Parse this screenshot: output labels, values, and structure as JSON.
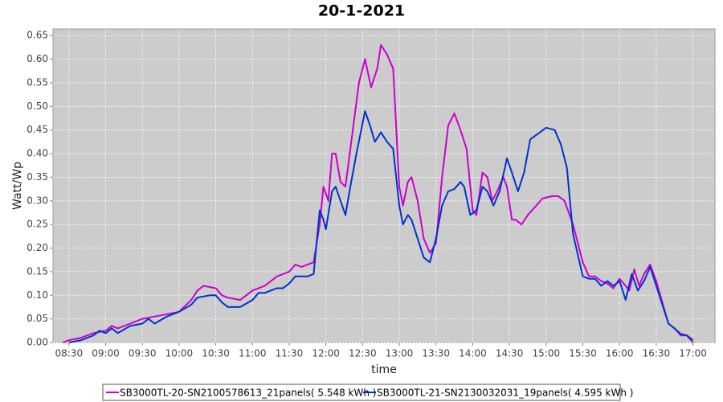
{
  "chart_data": {
    "type": "line",
    "title": "20-1-2021",
    "x_label": "time",
    "y_label": "Watt/Wp",
    "xlim": [
      "08:17",
      "17:18"
    ],
    "ylim": [
      0,
      0.664
    ],
    "xticks": [
      "08:30",
      "09:00",
      "09:30",
      "10:00",
      "10:30",
      "11:00",
      "11:30",
      "12:00",
      "12:30",
      "13:00",
      "13:30",
      "14:00",
      "14:30",
      "15:00",
      "15:30",
      "16:00",
      "16:30",
      "17:00"
    ],
    "yticks": [
      {
        "value": 0,
        "label": "0.00"
      },
      {
        "value": 0.05,
        "label": "0.05"
      },
      {
        "value": 0.1,
        "label": "0.10"
      },
      {
        "value": 0.15,
        "label": "0.15"
      },
      {
        "value": 0.2,
        "label": "0.20"
      },
      {
        "value": 0.25,
        "label": "0.25"
      },
      {
        "value": 0.3,
        "label": "0.30"
      },
      {
        "value": 0.35,
        "label": "0.35"
      },
      {
        "value": 0.4,
        "label": "0.40"
      },
      {
        "value": 0.45,
        "label": "0.45"
      },
      {
        "value": 0.5,
        "label": "0.50"
      },
      {
        "value": 0.55,
        "label": "0.55"
      },
      {
        "value": 0.6,
        "label": "0.60"
      },
      {
        "value": 0.65,
        "label": "0.65"
      }
    ],
    "grid": true,
    "series": [
      {
        "name": "SB3000TL-20-SN2100578613_21panels( 5.548 kWh )",
        "color": "#cc00cc",
        "x": [
          "08:25",
          "08:30",
          "08:40",
          "08:50",
          "09:00",
          "09:05",
          "09:10",
          "09:20",
          "09:30",
          "09:40",
          "09:50",
          "10:00",
          "10:10",
          "10:15",
          "10:20",
          "10:30",
          "10:35",
          "10:40",
          "10:50",
          "11:00",
          "11:10",
          "11:20",
          "11:30",
          "11:35",
          "11:40",
          "11:50",
          "11:55",
          "11:58",
          "12:02",
          "12:05",
          "12:08",
          "12:12",
          "12:16",
          "12:22",
          "12:27",
          "12:32",
          "12:37",
          "12:42",
          "12:45",
          "12:50",
          "12:55",
          "13:00",
          "13:03",
          "13:07",
          "13:10",
          "13:15",
          "13:20",
          "13:25",
          "13:30",
          "13:35",
          "13:40",
          "13:45",
          "13:50",
          "13:55",
          "14:00",
          "14:03",
          "14:08",
          "14:12",
          "14:16",
          "14:20",
          "14:25",
          "14:28",
          "14:32",
          "14:35",
          "14:40",
          "14:45",
          "14:52",
          "14:57",
          "15:05",
          "15:10",
          "15:15",
          "15:22",
          "15:30",
          "15:35",
          "15:40",
          "15:45",
          "15:50",
          "15:55",
          "16:00",
          "16:05",
          "16:08",
          "16:12",
          "16:16",
          "16:20",
          "16:25",
          "16:30",
          "16:35",
          "16:40",
          "16:45",
          "16:50",
          "16:55",
          "17:00"
        ],
        "values": [
          0,
          0.005,
          0.01,
          0.02,
          0.025,
          0.035,
          0.03,
          0.04,
          0.05,
          0.055,
          0.06,
          0.065,
          0.09,
          0.11,
          0.12,
          0.115,
          0.1,
          0.095,
          0.09,
          0.11,
          0.12,
          0.14,
          0.15,
          0.165,
          0.16,
          0.17,
          0.25,
          0.33,
          0.3,
          0.4,
          0.4,
          0.34,
          0.33,
          0.45,
          0.55,
          0.6,
          0.54,
          0.58,
          0.63,
          0.61,
          0.58,
          0.33,
          0.29,
          0.34,
          0.35,
          0.3,
          0.22,
          0.19,
          0.21,
          0.35,
          0.46,
          0.485,
          0.45,
          0.41,
          0.28,
          0.27,
          0.36,
          0.35,
          0.3,
          0.32,
          0.35,
          0.33,
          0.26,
          0.26,
          0.25,
          0.27,
          0.29,
          0.305,
          0.31,
          0.31,
          0.3,
          0.25,
          0.17,
          0.14,
          0.14,
          0.13,
          0.125,
          0.115,
          0.135,
          0.12,
          0.11,
          0.155,
          0.12,
          0.145,
          0.165,
          0.13,
          0.085,
          0.04,
          0.03,
          0.015,
          0.015,
          0
        ]
      },
      {
        "name": "SB3000TL-21-SN2130032031_19panels( 4.595 kWh )",
        "color": "#0033cc",
        "x": [
          "08:30",
          "08:40",
          "08:50",
          "08:55",
          "09:00",
          "09:05",
          "09:10",
          "09:20",
          "09:30",
          "09:35",
          "09:40",
          "09:50",
          "10:00",
          "10:10",
          "10:15",
          "10:25",
          "10:30",
          "10:35",
          "10:40",
          "10:50",
          "11:00",
          "11:05",
          "11:10",
          "11:20",
          "11:25",
          "11:30",
          "11:35",
          "11:45",
          "11:50",
          "11:55",
          "11:58",
          "12:00",
          "12:05",
          "12:08",
          "12:12",
          "12:16",
          "12:20",
          "12:25",
          "12:32",
          "12:36",
          "12:40",
          "12:45",
          "12:50",
          "12:55",
          "13:00",
          "13:03",
          "13:07",
          "13:10",
          "13:15",
          "13:20",
          "13:25",
          "13:30",
          "13:35",
          "13:40",
          "13:45",
          "13:50",
          "13:53",
          "13:58",
          "14:03",
          "14:08",
          "14:12",
          "14:17",
          "14:22",
          "14:28",
          "14:32",
          "14:37",
          "14:42",
          "14:47",
          "14:55",
          "15:00",
          "15:07",
          "15:12",
          "15:17",
          "15:22",
          "15:30",
          "15:35",
          "15:40",
          "15:45",
          "15:50",
          "15:55",
          "16:00",
          "16:05",
          "16:10",
          "16:15",
          "16:20",
          "16:25",
          "16:30",
          "16:35",
          "16:40",
          "16:45",
          "16:50",
          "16:55",
          "17:00"
        ],
        "values": [
          0,
          0.005,
          0.015,
          0.025,
          0.02,
          0.03,
          0.02,
          0.035,
          0.04,
          0.05,
          0.04,
          0.055,
          0.065,
          0.08,
          0.095,
          0.1,
          0.1,
          0.085,
          0.075,
          0.075,
          0.09,
          0.105,
          0.105,
          0.115,
          0.115,
          0.125,
          0.14,
          0.14,
          0.145,
          0.28,
          0.26,
          0.24,
          0.32,
          0.33,
          0.3,
          0.27,
          0.33,
          0.4,
          0.49,
          0.46,
          0.425,
          0.445,
          0.425,
          0.41,
          0.29,
          0.25,
          0.27,
          0.26,
          0.22,
          0.18,
          0.17,
          0.22,
          0.29,
          0.32,
          0.325,
          0.34,
          0.33,
          0.27,
          0.28,
          0.33,
          0.32,
          0.29,
          0.32,
          0.39,
          0.36,
          0.32,
          0.36,
          0.43,
          0.445,
          0.455,
          0.45,
          0.42,
          0.37,
          0.23,
          0.14,
          0.135,
          0.135,
          0.12,
          0.13,
          0.12,
          0.13,
          0.09,
          0.145,
          0.11,
          0.13,
          0.16,
          0.12,
          0.08,
          0.04,
          0.03,
          0.018,
          0.015,
          0.005
        ]
      }
    ]
  }
}
